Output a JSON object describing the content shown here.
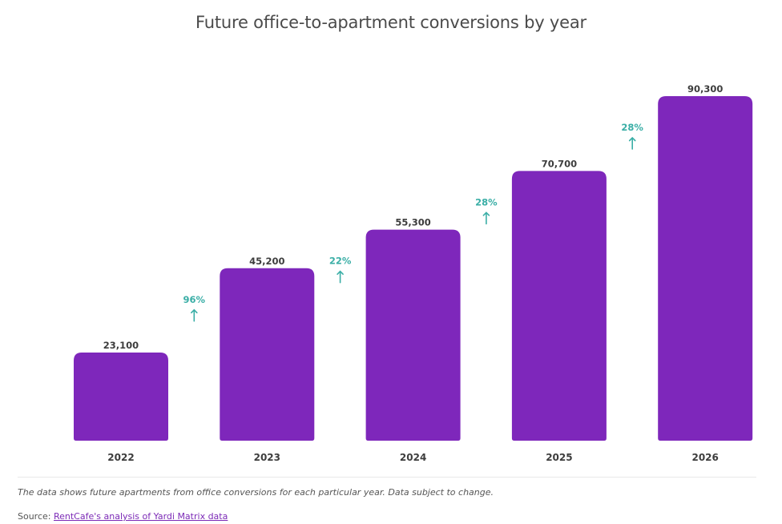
{
  "chart_data": {
    "type": "bar",
    "title": "Future office-to-apartment conversions by year",
    "categories": [
      "2022",
      "2023",
      "2024",
      "2025",
      "2026"
    ],
    "values": [
      23100,
      45200,
      55300,
      70700,
      90300
    ],
    "value_labels": [
      "23,100",
      "45,200",
      "55,300",
      "70,700",
      "90,300"
    ],
    "growth_labels": [
      null,
      "96%",
      "22%",
      "28%",
      "28%"
    ],
    "growth_icon": "arrow-up-icon",
    "xlabel": "",
    "ylabel": "",
    "ylim": [
      0,
      90300
    ],
    "grid": false,
    "legend": "none",
    "colors": {
      "bar": "#7e27bb",
      "growth": "#3aaea6",
      "label": "#3d3d3d"
    }
  },
  "footer": {
    "note": "The data shows future apartments from office conversions for each particular year. Data subject to change.",
    "source_prefix": "Source: ",
    "source_link": "RentCafe's analysis of Yardi Matrix data"
  }
}
